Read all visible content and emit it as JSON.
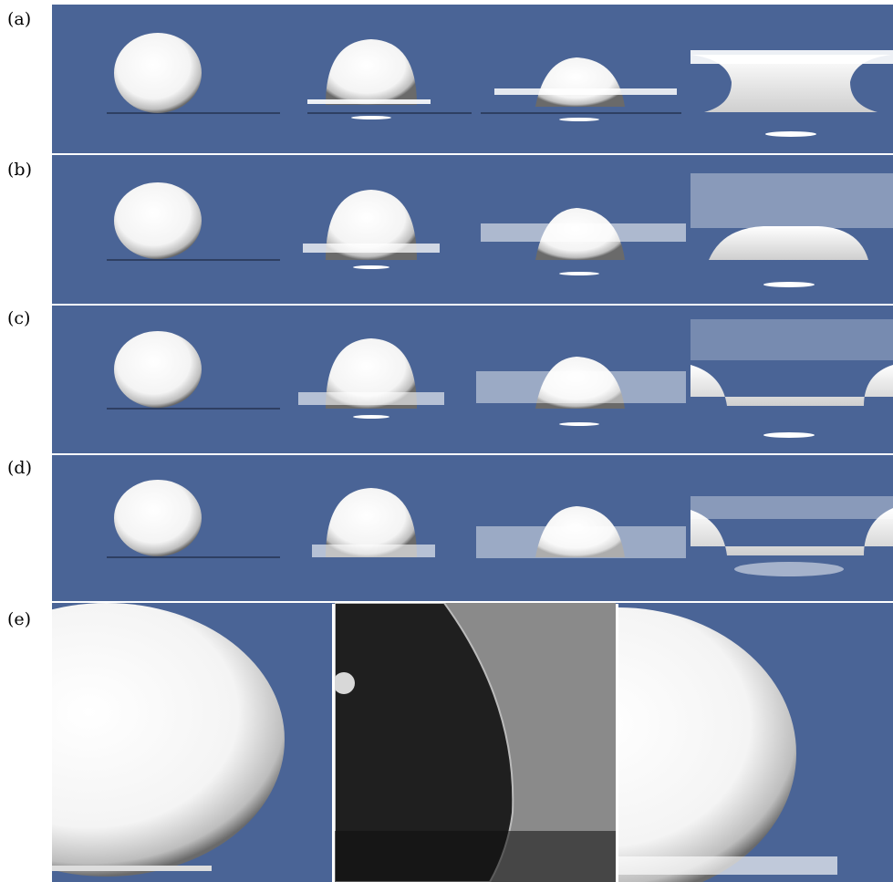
{
  "figure": {
    "rows": [
      {
        "label": "(a)"
      },
      {
        "label": "(b)"
      },
      {
        "label": "(c)"
      },
      {
        "label": "(d)"
      },
      {
        "label": "(e)"
      }
    ]
  },
  "colors": {
    "background": "#4a6496",
    "drop": "#ffffff",
    "photo": "#2a2a2a"
  }
}
